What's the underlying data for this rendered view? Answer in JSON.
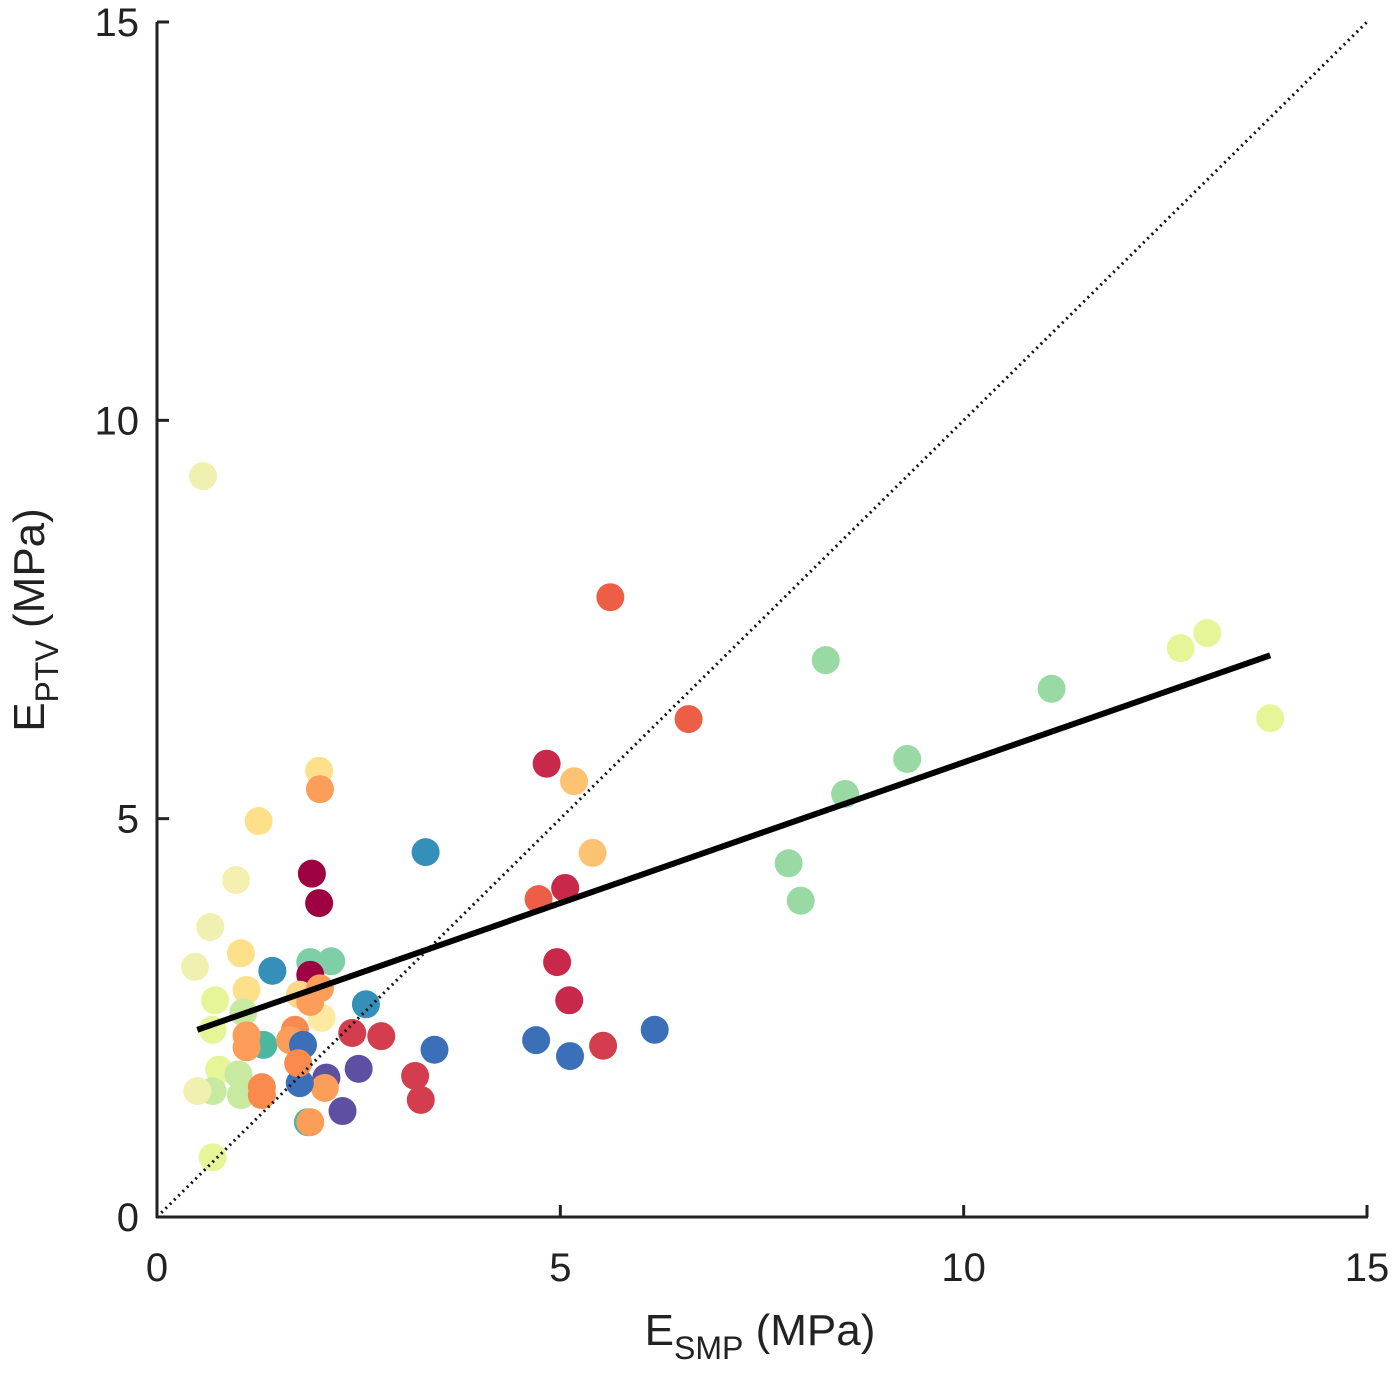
{
  "chart_data": {
    "type": "scatter",
    "xlabel": {
      "main": "E",
      "sub": "SMP",
      "unit": " (MPa)"
    },
    "ylabel": {
      "main": "E",
      "sub": "PTV",
      "unit": " (MPa)"
    },
    "xlim": [
      0,
      15
    ],
    "ylim": [
      0,
      15
    ],
    "xticks": [
      "0",
      "5",
      "10",
      "15"
    ],
    "yticks": [
      "0",
      "5",
      "10",
      "15"
    ],
    "grid": false,
    "one_to_one_line": {
      "style": "dotted",
      "from": [
        0,
        0
      ],
      "to": [
        15,
        15
      ]
    },
    "regression_line": {
      "style": "solid",
      "from": [
        0.5,
        2.35
      ],
      "to": [
        13.8,
        7.05
      ]
    },
    "points": [
      [
        0.57,
        9.3,
        "#f0f0b0"
      ],
      [
        5.62,
        7.78,
        "#ec5f46"
      ],
      [
        6.59,
        6.25,
        "#ec5f46"
      ],
      [
        4.83,
        5.69,
        "#c8294a"
      ],
      [
        5.17,
        5.47,
        "#fdc272"
      ],
      [
        5.4,
        4.57,
        "#fdc272"
      ],
      [
        4.73,
        3.99,
        "#ec5f46"
      ],
      [
        5.06,
        4.13,
        "#c8294a"
      ],
      [
        4.96,
        3.2,
        "#c8294a"
      ],
      [
        5.11,
        2.72,
        "#c8294a"
      ],
      [
        4.7,
        2.22,
        "#3b6fb7"
      ],
      [
        5.12,
        2.02,
        "#3b6fb7"
      ],
      [
        5.53,
        2.15,
        "#d33d4d"
      ],
      [
        6.17,
        2.35,
        "#3b6fb7"
      ],
      [
        3.33,
        4.58,
        "#3490b8"
      ],
      [
        3.44,
        2.1,
        "#3b6fb7"
      ],
      [
        3.2,
        1.77,
        "#d33d4d"
      ],
      [
        3.27,
        1.47,
        "#d33d4d"
      ],
      [
        2.78,
        2.27,
        "#d33d4d"
      ],
      [
        2.42,
        2.31,
        "#d33d4d"
      ],
      [
        2.59,
        2.67,
        "#3490b8"
      ],
      [
        2.5,
        1.86,
        "#5e4fa2"
      ],
      [
        2.3,
        1.33,
        "#5e4fa2"
      ],
      [
        2.1,
        1.75,
        "#5e4fa2"
      ],
      [
        2.08,
        1.62,
        "#fc9d5a"
      ],
      [
        1.87,
        1.19,
        "#4ab8a0"
      ],
      [
        1.9,
        1.19,
        "#fc9d5a"
      ],
      [
        1.92,
        4.31,
        "#9e0142"
      ],
      [
        2.01,
        3.94,
        "#9e0142"
      ],
      [
        1.9,
        3.2,
        "#7fcfa6"
      ],
      [
        2.16,
        3.21,
        "#7fcfa6"
      ],
      [
        1.9,
        3.04,
        "#9e0142"
      ],
      [
        2.01,
        5.6,
        "#fee08b"
      ],
      [
        2.02,
        5.37,
        "#fc9d5a"
      ],
      [
        1.26,
        4.97,
        "#fee08b"
      ],
      [
        0.98,
        4.23,
        "#f5f0b0"
      ],
      [
        0.66,
        3.64,
        "#f0f0b0"
      ],
      [
        0.47,
        3.14,
        "#f0f0b0"
      ],
      [
        1.04,
        3.31,
        "#fee08b"
      ],
      [
        1.43,
        3.09,
        "#3490b8"
      ],
      [
        1.11,
        2.85,
        "#fee08b"
      ],
      [
        0.72,
        2.72,
        "#e6f598"
      ],
      [
        1.07,
        2.57,
        "#c7e9a0"
      ],
      [
        1.77,
        2.79,
        "#fdd78a"
      ],
      [
        2.04,
        2.5,
        "#fdeaa0"
      ],
      [
        2.02,
        2.87,
        "#fc9d5a"
      ],
      [
        1.9,
        2.7,
        "#fc9d5a"
      ],
      [
        1.71,
        2.35,
        "#fb8a4f"
      ],
      [
        1.32,
        2.16,
        "#4ab8a0"
      ],
      [
        1.11,
        2.28,
        "#fc9d5a"
      ],
      [
        1.11,
        2.13,
        "#fc9d5a"
      ],
      [
        0.69,
        2.35,
        "#e6f598"
      ],
      [
        1.65,
        2.22,
        "#fc9d5a"
      ],
      [
        1.81,
        2.16,
        "#3b6fb7"
      ],
      [
        1.77,
        1.68,
        "#3b6fb7"
      ],
      [
        1.75,
        1.93,
        "#fb8a4f"
      ],
      [
        0.77,
        1.85,
        "#e6f598"
      ],
      [
        1.01,
        1.79,
        "#c7e9a0"
      ],
      [
        1.04,
        1.53,
        "#c7e9a0"
      ],
      [
        0.69,
        1.58,
        "#c7e9a0"
      ],
      [
        0.5,
        1.58,
        "#f0f0b0"
      ],
      [
        1.3,
        1.63,
        "#fb8a4f"
      ],
      [
        1.3,
        1.53,
        "#fb8a4f"
      ],
      [
        0.69,
        0.75,
        "#e6f598"
      ],
      [
        12.69,
        7.14,
        "#e6f598"
      ],
      [
        13.02,
        7.33,
        "#e6f598"
      ],
      [
        13.8,
        6.26,
        "#e6f598"
      ],
      [
        11.09,
        6.63,
        "#98d9a4"
      ],
      [
        8.29,
        6.99,
        "#98d9a4"
      ],
      [
        9.3,
        5.75,
        "#98d9a4"
      ],
      [
        8.53,
        5.31,
        "#98d9a4"
      ],
      [
        7.83,
        4.44,
        "#98d9a4"
      ],
      [
        7.98,
        3.97,
        "#98d9a4"
      ]
    ]
  }
}
